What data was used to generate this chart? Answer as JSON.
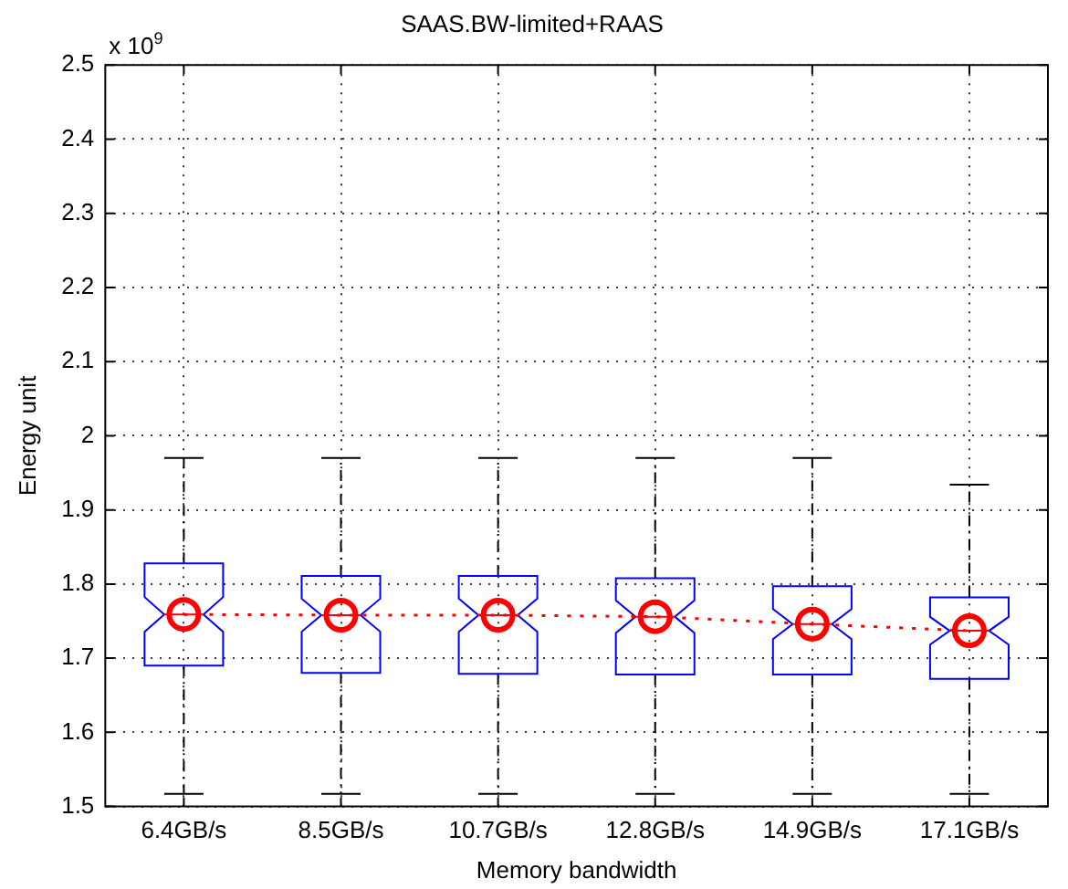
{
  "chart_data": {
    "type": "box",
    "title": "SAAS.BW-limited+RAAS",
    "xlabel": "Memory bandwidth",
    "ylabel": "Energy unit",
    "annotations": [
      "x 10$^{9}$"
    ],
    "categories": [
      "6.4GB/s",
      "8.5GB/s",
      "10.7GB/s",
      "12.8GB/s",
      "14.9GB/s",
      "17.1GB/s"
    ],
    "boxes": [
      {
        "low": 1.517,
        "q1": 1.69,
        "median": 1.759,
        "q3": 1.828,
        "high": 1.97
      },
      {
        "low": 1.517,
        "q1": 1.68,
        "median": 1.758,
        "q3": 1.811,
        "high": 1.97
      },
      {
        "low": 1.517,
        "q1": 1.679,
        "median": 1.758,
        "q3": 1.811,
        "high": 1.97
      },
      {
        "low": 1.517,
        "q1": 1.678,
        "median": 1.756,
        "q3": 1.808,
        "high": 1.97
      },
      {
        "low": 1.517,
        "q1": 1.678,
        "median": 1.746,
        "q3": 1.797,
        "high": 1.97
      },
      {
        "low": 1.517,
        "q1": 1.672,
        "median": 1.737,
        "q3": 1.782,
        "high": 1.934
      }
    ],
    "color": "#0000ff",
    "series": [
      {
        "type": "line",
        "color": "#ff0000",
        "values": [
          1.759,
          1.758,
          1.758,
          1.756,
          1.746,
          1.737
        ],
        "marker": "circle",
        "line_style": "dotted"
      }
    ],
    "ylim": [
      1.5,
      2.5
    ],
    "yticks": [
      1.5,
      1.6,
      1.7,
      1.8,
      1.9,
      2,
      2.1,
      2.2,
      2.3,
      2.4,
      2.5
    ],
    "grid": true,
    "legend": false
  }
}
